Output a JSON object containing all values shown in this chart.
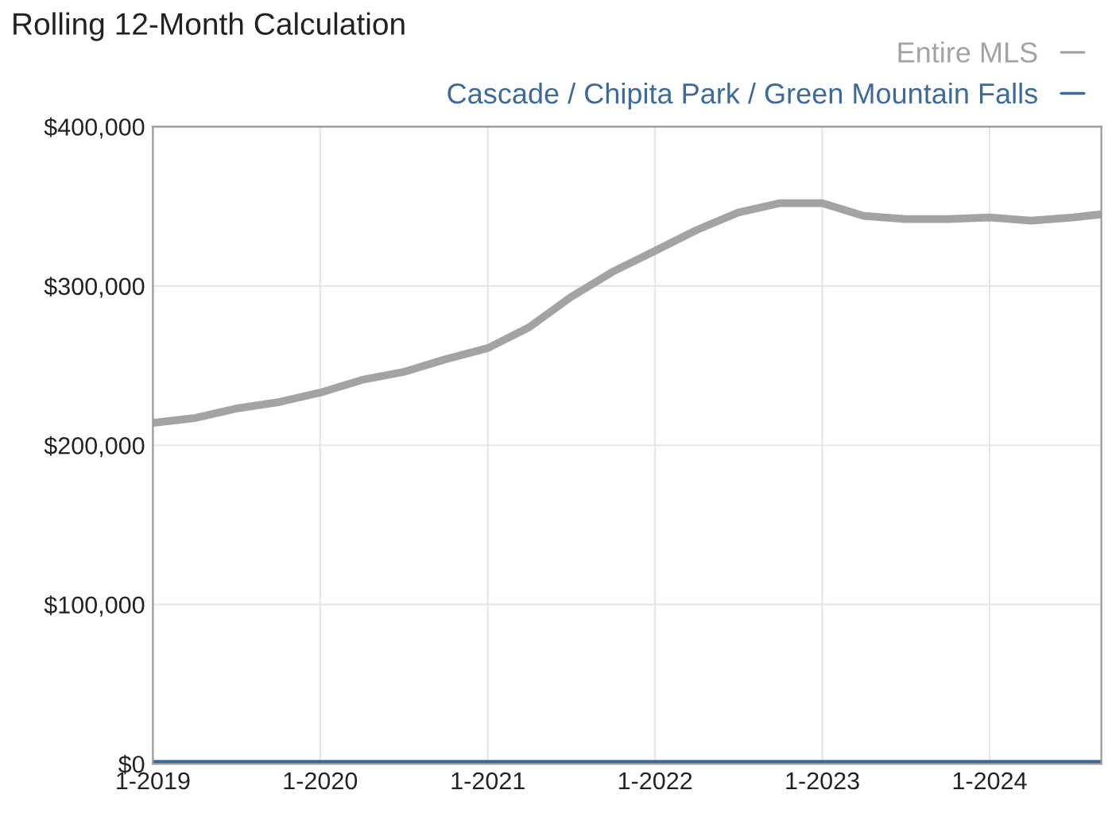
{
  "chart_data": {
    "type": "line",
    "title": "Rolling 12-Month Calculation",
    "x": [
      "2019-01",
      "2019-04",
      "2019-07",
      "2019-10",
      "2020-01",
      "2020-04",
      "2020-07",
      "2020-10",
      "2021-01",
      "2021-04",
      "2021-07",
      "2021-10",
      "2022-01",
      "2022-04",
      "2022-07",
      "2022-10",
      "2023-01",
      "2023-04",
      "2023-07",
      "2023-10",
      "2024-01",
      "2024-04",
      "2024-07",
      "2024-09"
    ],
    "series": [
      {
        "name": "Entire MLS",
        "color": "#a3a3a3",
        "values": [
          214000,
          217000,
          223000,
          227000,
          233000,
          241000,
          246000,
          254000,
          261000,
          274000,
          293000,
          309000,
          322000,
          335000,
          346000,
          352000,
          352000,
          344000,
          342000,
          342000,
          343000,
          341000,
          343000,
          345000
        ]
      },
      {
        "name": "Cascade / Chipita Park / Green Mountain Falls",
        "color": "#3d6a96",
        "values": [
          0,
          0,
          0,
          0,
          0,
          0,
          0,
          0,
          0,
          0,
          0,
          0,
          0,
          0,
          0,
          0,
          0,
          0,
          0,
          0,
          0,
          0,
          0,
          0
        ]
      }
    ],
    "xlim": [
      "2019-01",
      "2024-09"
    ],
    "xticks": [
      {
        "value": "2019-01",
        "label": "1-2019"
      },
      {
        "value": "2020-01",
        "label": "1-2020"
      },
      {
        "value": "2021-01",
        "label": "1-2021"
      },
      {
        "value": "2022-01",
        "label": "1-2022"
      },
      {
        "value": "2023-01",
        "label": "1-2023"
      },
      {
        "value": "2024-01",
        "label": "1-2024"
      }
    ],
    "ylim": [
      0,
      400000
    ],
    "yticks": [
      {
        "value": 0,
        "label": "$0"
      },
      {
        "value": 100000,
        "label": "$100,000"
      },
      {
        "value": 200000,
        "label": "$200,000"
      },
      {
        "value": 300000,
        "label": "$300,000"
      },
      {
        "value": 400000,
        "label": "$400,000"
      }
    ],
    "grid": true,
    "legend": "top right",
    "marker": "none",
    "line_style": "solid"
  }
}
